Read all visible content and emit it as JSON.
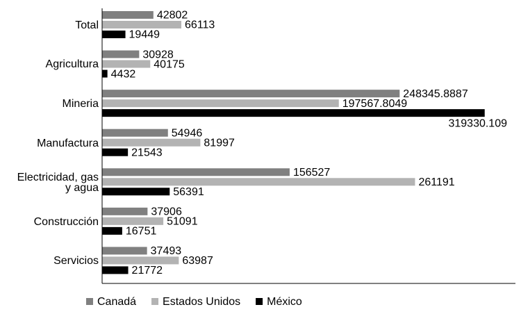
{
  "chart_data": {
    "type": "hbar",
    "categories": [
      "Total",
      "Agricultura",
      "Mineria",
      "Manufactura",
      "Electricidad, gas\ny agua",
      "Construcción",
      "Servicios"
    ],
    "series": [
      {
        "name": "Canadá",
        "color": "#808080",
        "values": [
          42802,
          30928,
          248345.8887,
          54946,
          156527,
          37906,
          37493
        ]
      },
      {
        "name": "Estados Unidos",
        "color": "#b3b3b3",
        "values": [
          66113,
          40175,
          197567.8049,
          81997,
          261191,
          51091,
          63987
        ]
      },
      {
        "name": "México",
        "color": "#000000",
        "values": [
          19449,
          4432,
          319330.109,
          21543,
          56391,
          16751,
          21772
        ]
      }
    ],
    "xlim": [
      0,
      345000
    ],
    "legend": "bottom"
  }
}
